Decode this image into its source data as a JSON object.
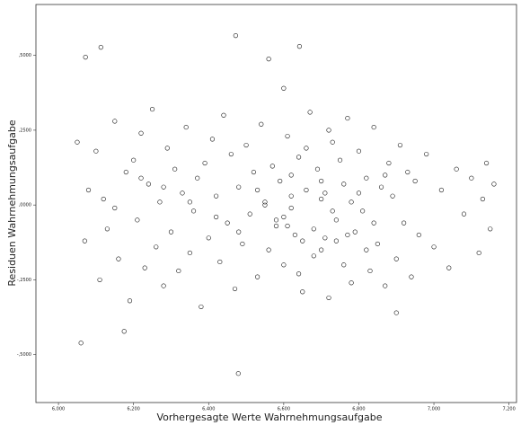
{
  "chart_data": {
    "type": "scatter",
    "x_label": "Vorhergesagte Werte Wahrnehmungsaufgabe",
    "y_label": "Residuen Wahrnehmungsaufgabe",
    "xlim": [
      5.94,
      7.22
    ],
    "ylim": [
      -0.66,
      0.67
    ],
    "xticks": [
      {
        "value": 6.0,
        "label": "6,000"
      },
      {
        "value": 6.2,
        "label": "6,200"
      },
      {
        "value": 6.4,
        "label": "6,400"
      },
      {
        "value": 6.6,
        "label": "6,600"
      },
      {
        "value": 6.8,
        "label": "6,800"
      },
      {
        "value": 7.0,
        "label": "7,000"
      },
      {
        "value": 7.2,
        "label": "7,200"
      }
    ],
    "yticks": [
      {
        "value": 0.5,
        "label": ",5000"
      },
      {
        "value": 0.25,
        "label": ",2500"
      },
      {
        "value": 0,
        "label": ",0000"
      },
      {
        "value": -0.25,
        "label": "-,2500"
      },
      {
        "value": -0.5,
        "label": "-,5000"
      }
    ],
    "color": "#111111",
    "x": [
      6.05,
      6.07,
      6.08,
      6.1,
      6.11,
      6.12,
      6.13,
      6.15,
      6.16,
      6.18,
      6.19,
      6.2,
      6.21,
      6.22,
      6.23,
      6.24,
      6.25,
      6.26,
      6.27,
      6.28,
      6.29,
      6.3,
      6.31,
      6.32,
      6.33,
      6.34,
      6.35,
      6.36,
      6.37,
      6.38,
      6.39,
      6.4,
      6.41,
      6.42,
      6.43,
      6.44,
      6.45,
      6.46,
      6.47,
      6.48,
      6.49,
      6.5,
      6.51,
      6.52,
      6.53,
      6.54,
      6.55,
      6.56,
      6.57,
      6.58,
      6.59,
      6.6,
      6.61,
      6.62,
      6.63,
      6.64,
      6.65,
      6.66,
      6.67,
      6.68,
      6.6,
      6.62,
      6.64,
      6.66,
      6.68,
      6.7,
      6.72,
      6.74,
      6.76,
      6.78,
      6.69,
      6.7,
      6.71,
      6.72,
      6.73,
      6.74,
      6.75,
      6.76,
      6.77,
      6.78,
      6.79,
      6.8,
      6.81,
      6.82,
      6.83,
      6.84,
      6.85,
      6.86,
      6.87,
      6.88,
      6.89,
      6.9,
      6.91,
      6.92,
      6.93,
      6.94,
      6.95,
      6.96,
      6.98,
      7.0,
      7.02,
      7.04,
      7.06,
      7.08,
      7.1,
      7.12,
      7.13,
      7.14,
      7.15,
      7.16,
      6.55,
      6.58,
      6.62,
      6.65,
      6.7,
      6.73,
      6.77,
      6.8,
      6.84,
      6.87,
      6.15,
      6.22,
      6.28,
      6.35,
      6.42,
      6.48,
      6.53,
      6.61,
      6.71,
      6.82,
      6.472,
      6.642,
      6.113,
      6.072,
      6.56,
      6.06,
      6.479,
      6.175,
      6.6,
      6.9
    ],
    "y": [
      0.21,
      -0.12,
      0.05,
      0.18,
      -0.25,
      0.02,
      -0.08,
      0.28,
      -0.18,
      0.11,
      -0.32,
      0.15,
      -0.05,
      0.24,
      -0.21,
      0.07,
      0.32,
      -0.14,
      0.01,
      -0.27,
      0.19,
      -0.09,
      0.12,
      -0.22,
      0.04,
      0.26,
      -0.16,
      -0.02,
      0.09,
      -0.34,
      0.14,
      -0.11,
      0.22,
      0.03,
      -0.19,
      0.3,
      -0.06,
      0.17,
      -0.28,
      0.06,
      -0.13,
      0.2,
      -0.03,
      0.11,
      -0.24,
      0.27,
      0.0,
      -0.15,
      0.13,
      -0.07,
      0.08,
      -0.2,
      0.23,
      -0.01,
      -0.1,
      0.16,
      -0.29,
      0.05,
      0.31,
      -0.17,
      -0.04,
      0.1,
      -0.23,
      0.19,
      -0.08,
      0.02,
      0.25,
      -0.12,
      0.07,
      -0.26,
      0.12,
      -0.15,
      0.04,
      -0.31,
      0.21,
      -0.05,
      0.15,
      -0.2,
      0.29,
      0.01,
      -0.09,
      0.18,
      -0.02,
      0.09,
      -0.22,
      0.26,
      -0.13,
      0.06,
      -0.27,
      0.14,
      0.03,
      -0.18,
      0.2,
      -0.06,
      0.11,
      -0.24,
      0.08,
      -0.1,
      0.17,
      -0.14,
      0.05,
      -0.21,
      0.12,
      -0.03,
      0.09,
      -0.16,
      0.02,
      0.14,
      -0.08,
      0.07,
      0.01,
      -0.05,
      0.03,
      -0.12,
      0.08,
      -0.02,
      -0.1,
      0.04,
      -0.06,
      0.1,
      -0.01,
      0.09,
      0.06,
      0.01,
      -0.04,
      -0.09,
      0.05,
      -0.07,
      -0.11,
      -0.15,
      0.566,
      0.53,
      0.527,
      0.494,
      0.488,
      -0.461,
      -0.563,
      -0.422,
      0.39,
      -0.36
    ]
  }
}
